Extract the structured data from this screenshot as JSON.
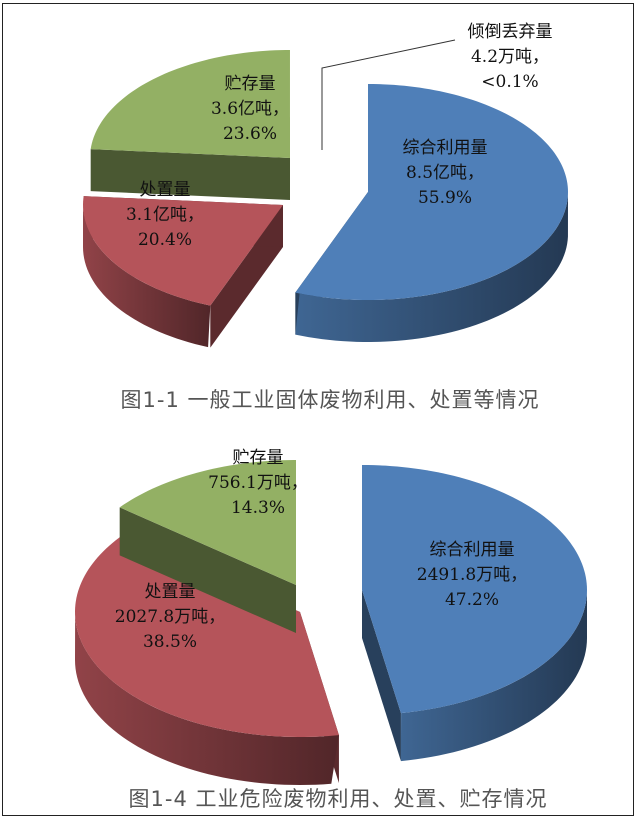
{
  "chart_data": [
    {
      "type": "pie",
      "style": "3d-exploded",
      "title": "图1-1  一般工业固体废物利用、处置等情况",
      "categories": [
        "综合利用量",
        "处置量",
        "贮存量",
        "倾倒丢弃量"
      ],
      "values": [
        8.5,
        3.1,
        3.6,
        0.00042
      ],
      "value_labels": [
        "8.5亿吨，",
        "3.1亿吨，",
        "3.6亿吨，",
        "4.2万吨，"
      ],
      "percent_labels": [
        "55.9%",
        "20.4%",
        "23.6%",
        "<0.1%"
      ],
      "percents": [
        55.9,
        20.4,
        23.6,
        0.1
      ],
      "colors": [
        "#4f7fb8",
        "#b5545a",
        "#93b064",
        "#7a7aa8"
      ]
    },
    {
      "type": "pie",
      "style": "3d-exploded",
      "title": "图1-4  工业危险废物利用、处置、贮存情况",
      "categories": [
        "综合利用量",
        "处置量",
        "贮存量"
      ],
      "values": [
        2491.8,
        2027.8,
        756.1
      ],
      "value_labels": [
        "2491.8万吨，",
        "2027.8万吨，",
        "756.1万吨，"
      ],
      "percent_labels": [
        "47.2%",
        "38.5%",
        "14.3%"
      ],
      "percents": [
        47.2,
        38.5,
        14.3
      ],
      "colors": [
        "#4f7fb8",
        "#b5545a",
        "#93b064"
      ]
    }
  ]
}
